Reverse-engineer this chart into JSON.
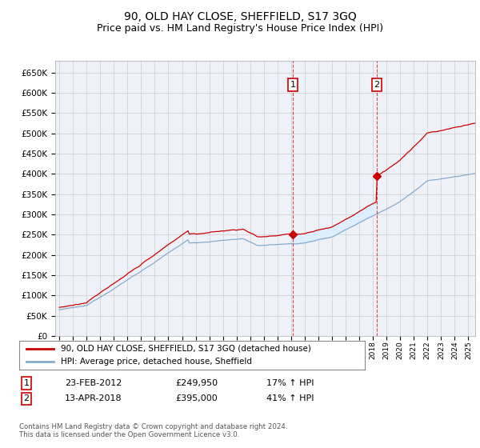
{
  "title": "90, OLD HAY CLOSE, SHEFFIELD, S17 3GQ",
  "subtitle": "Price paid vs. HM Land Registry's House Price Index (HPI)",
  "title_fontsize": 10,
  "subtitle_fontsize": 9,
  "legend_line1": "90, OLD HAY CLOSE, SHEFFIELD, S17 3GQ (detached house)",
  "legend_line2": "HPI: Average price, detached house, Sheffield",
  "sale1_label": "1",
  "sale1_date": "23-FEB-2012",
  "sale1_price": "£249,950",
  "sale1_hpi": "17% ↑ HPI",
  "sale1_year": 2012.12,
  "sale2_label": "2",
  "sale2_date": "13-APR-2018",
  "sale2_price": "£395,000",
  "sale2_hpi": "41% ↑ HPI",
  "sale2_year": 2018.28,
  "red_color": "#cc0000",
  "blue_line_color": "#88aacc",
  "fill_color": "#ddeeff",
  "background_color": "#eef2f8",
  "grid_color": "#cccccc",
  "ylim": [
    0,
    680000
  ],
  "yticks": [
    0,
    50000,
    100000,
    150000,
    200000,
    250000,
    300000,
    350000,
    400000,
    450000,
    500000,
    550000,
    600000,
    650000
  ],
  "xlim_left": 1994.7,
  "xlim_right": 2025.5,
  "copyright": "Contains HM Land Registry data © Crown copyright and database right 2024.\nThis data is licensed under the Open Government Licence v3.0."
}
